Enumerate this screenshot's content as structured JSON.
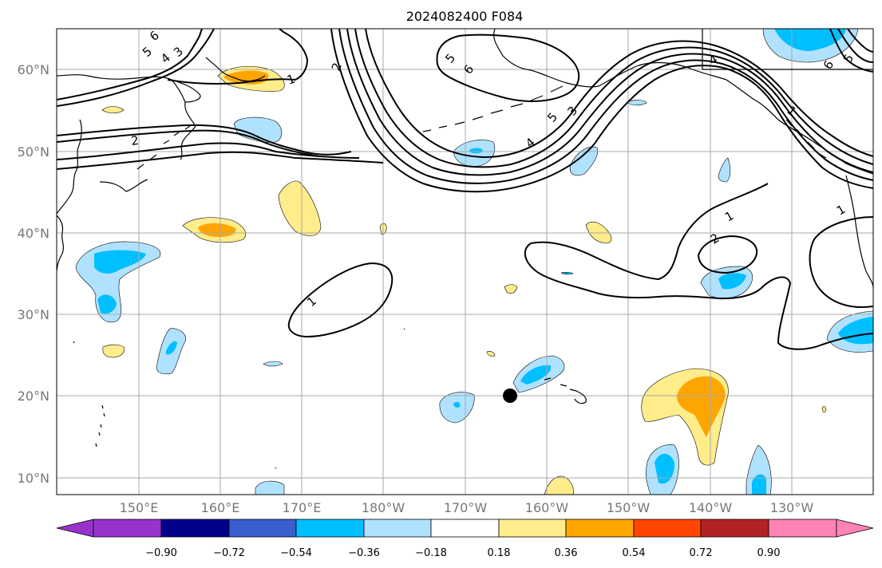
{
  "title": "2024082400 F084",
  "lat_labels": [
    "60°N",
    "50°N",
    "40°N",
    "30°N",
    "20°N",
    "10°N"
  ],
  "lon_labels": [
    "150°E",
    "160°E",
    "170°E",
    "180°W",
    "170°W",
    "160°W",
    "150°W",
    "140°W",
    "130°W"
  ],
  "colorbar": {
    "tick_labels": [
      "−0.90",
      "−0.72",
      "−0.54",
      "−0.36",
      "−0.18",
      "0.18",
      "0.36",
      "0.54",
      "0.72",
      "0.90"
    ],
    "colors": [
      "#9932cc",
      "#00008b",
      "#3a5fcd",
      "#00bfff",
      "#b0e2ff",
      "#ffffff",
      "#ffec8b",
      "#ffa500",
      "#ff4500",
      "#b22222",
      "#ff83b5"
    ]
  },
  "contour_labels": {
    "siberia_6": "6",
    "siberia_5": "5",
    "siberia_4": "4",
    "siberia_3": "3",
    "kam_2": "2",
    "kam_1": "1",
    "trough_2": "2",
    "trough_5": "5",
    "trough_6": "6",
    "trough_4": "4",
    "alaska_5": "5",
    "alaska_3": "3",
    "canada_4": "4",
    "canada_1": "1",
    "ne_6": "6",
    "ne_5": "5",
    "mid_1": "1",
    "east_1": "1",
    "east_2": "2",
    "coast_1": "1"
  },
  "marker": {
    "label": "storm-center-dot"
  }
}
